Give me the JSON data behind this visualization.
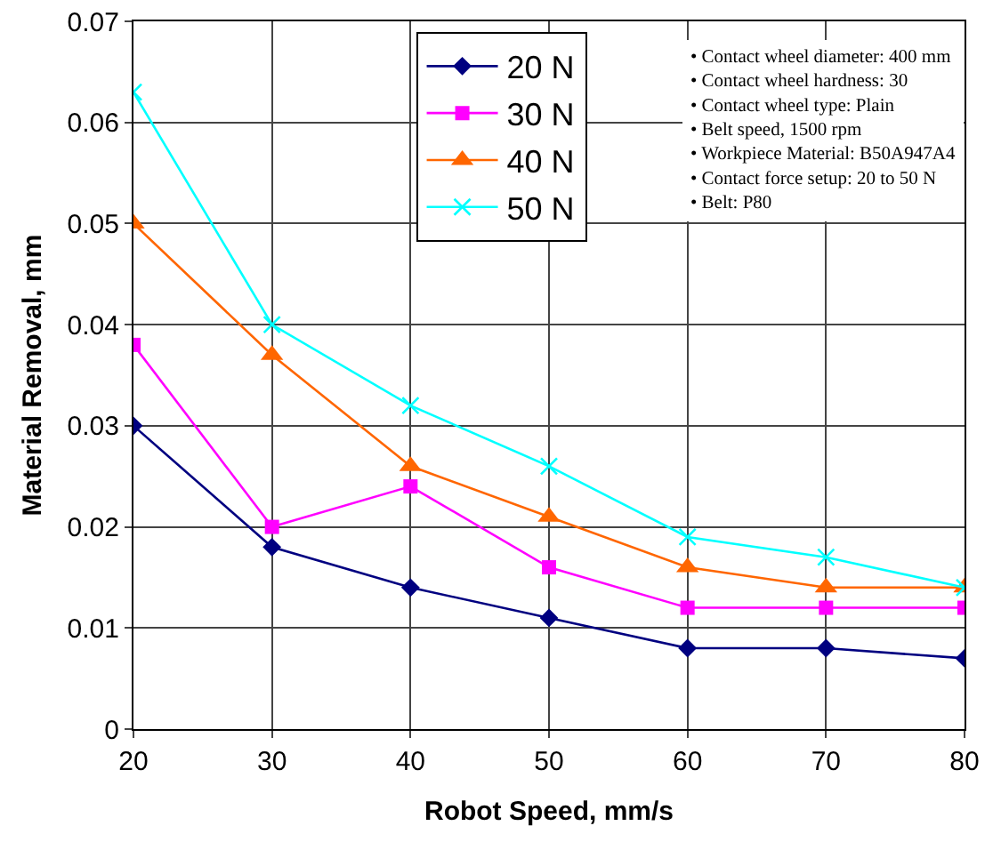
{
  "chart_data": {
    "type": "line",
    "xlabel": "Robot Speed, mm/s",
    "ylabel": "Material Removal, mm",
    "x": [
      20,
      30,
      40,
      50,
      60,
      70,
      80
    ],
    "series": [
      {
        "name": "20 N",
        "color": "#000080",
        "marker": "diamond",
        "values": [
          0.03,
          0.018,
          0.014,
          0.011,
          0.008,
          0.008,
          0.007
        ]
      },
      {
        "name": "30 N",
        "color": "#ff00ff",
        "marker": "square",
        "values": [
          0.038,
          0.02,
          0.024,
          0.016,
          0.012,
          0.012,
          0.012
        ]
      },
      {
        "name": "40 N",
        "color": "#ff6600",
        "marker": "triangle",
        "values": [
          0.05,
          0.037,
          0.026,
          0.021,
          0.016,
          0.014,
          0.014
        ]
      },
      {
        "name": "50 N",
        "color": "#00ffff",
        "marker": "cross",
        "values": [
          0.063,
          0.04,
          0.032,
          0.026,
          0.019,
          0.017,
          0.014
        ]
      }
    ],
    "xlim": [
      20,
      80
    ],
    "xticks": [
      20,
      30,
      40,
      50,
      60,
      70,
      80
    ],
    "ylim": [
      0,
      0.07
    ],
    "yticks": [
      0,
      0.01,
      0.02,
      0.03,
      0.04,
      0.05,
      0.06,
      0.07
    ],
    "grid": true,
    "legend": "top",
    "annotations": [
      "• Contact wheel diameter: 400 mm",
      "• Contact wheel hardness: 30",
      "• Contact wheel type: Plain",
      "• Belt speed, 1500 rpm",
      "• Workpiece Material: B50A947A4",
      "• Contact force setup: 20 to 50 N",
      "• Belt: P80"
    ]
  }
}
